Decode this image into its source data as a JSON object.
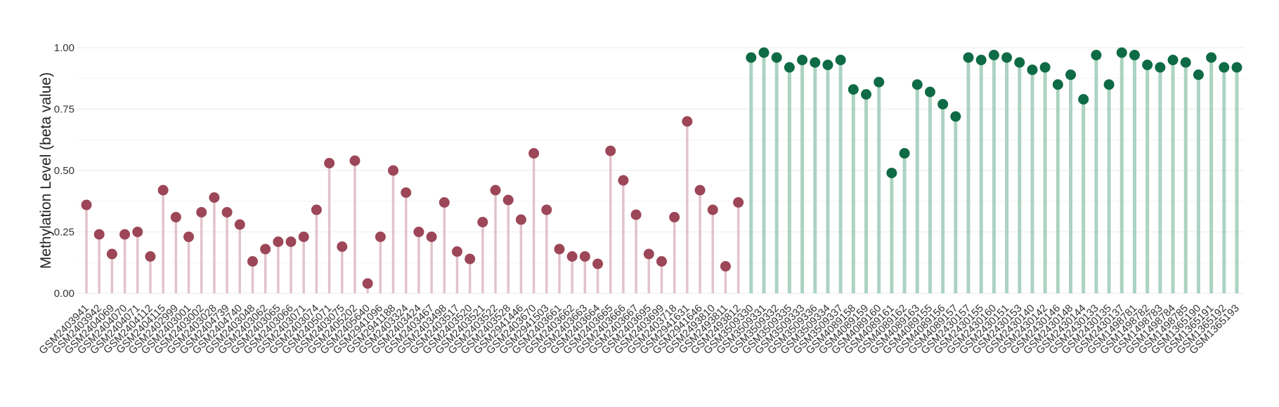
{
  "chart_data": {
    "type": "lollipop",
    "title": "",
    "xlabel": "",
    "ylabel": "Methylation Level (beta value)",
    "ylim": [
      0,
      1.05
    ],
    "yticks": [
      "0.00",
      "0.25",
      "0.50",
      "0.75",
      "1.00"
    ],
    "grid": true,
    "legend": "none",
    "colors": {
      "group_low_point": "#9c4657",
      "group_low_stem": "#e2c3cb",
      "group_high_point": "#0e6b45",
      "group_high_stem": "#acd3c2",
      "grid": "#efefef",
      "text": "#333333"
    },
    "categories": [
      "GSM2403941",
      "GSM2403942",
      "GSM2404069",
      "GSM2404070",
      "GSM2404071",
      "GSM2404112",
      "GSM2404115",
      "GSM2402999",
      "GSM2403001",
      "GSM2403002",
      "GSM2403028",
      "GSM2404739",
      "GSM2404740",
      "GSM2403048",
      "GSM2403062",
      "GSM2403065",
      "GSM2403066",
      "GSM2403071",
      "GSM2403074",
      "GSM2405071",
      "GSM2403075",
      "GSM2405202",
      "GSM2405640",
      "GSM2941096",
      "GSM2941188",
      "GSM2403324",
      "GSM2403424",
      "GSM2403467",
      "GSM2403498",
      "GSM2403517",
      "GSM2403520",
      "GSM2403521",
      "GSM2403522",
      "GSM2403528",
      "GSM2941446",
      "GSM2403670",
      "GSM2941503",
      "GSM2403661",
      "GSM2403662",
      "GSM2403663",
      "GSM2403664",
      "GSM2403665",
      "GSM2403666",
      "GSM2403667",
      "GSM2403695",
      "GSM2403699",
      "GSM2403718",
      "GSM2941631",
      "GSM2941646",
      "GSM2493810",
      "GSM2493811",
      "GSM2493812",
      "GSM3509330",
      "GSM3509331",
      "GSM3509332",
      "GSM3509335",
      "GSM3509333",
      "GSM3509336",
      "GSM3509334",
      "GSM3509337",
      "GSM4089158",
      "GSM4089159",
      "GSM4089160",
      "GSM4089161",
      "GSM4089162",
      "GSM4089163",
      "GSM4089155",
      "GSM4089156",
      "GSM4089157",
      "GSM2430157",
      "GSM2430155",
      "GSM2430160",
      "GSM2430151",
      "GSM2430153",
      "GSM2430140",
      "GSM2430142",
      "GSM2430146",
      "GSM2430148",
      "GSM2430144",
      "GSM2430133",
      "GSM2430135",
      "GSM2430137",
      "GSM1498781",
      "GSM1498782",
      "GSM1498783",
      "GSM1498784",
      "GSM1498785",
      "GSM1365190",
      "GSM1365191",
      "GSM1365192",
      "GSM1365193"
    ],
    "values": [
      0.36,
      0.24,
      0.16,
      0.24,
      0.25,
      0.15,
      0.42,
      0.31,
      0.23,
      0.33,
      0.39,
      0.33,
      0.28,
      0.13,
      0.18,
      0.21,
      0.21,
      0.23,
      0.34,
      0.53,
      0.19,
      0.54,
      0.04,
      0.23,
      0.5,
      0.41,
      0.25,
      0.23,
      0.37,
      0.17,
      0.14,
      0.29,
      0.42,
      0.38,
      0.3,
      0.57,
      0.34,
      0.18,
      0.15,
      0.15,
      0.12,
      0.58,
      0.46,
      0.32,
      0.16,
      0.13,
      0.31,
      0.7,
      0.42,
      0.34,
      0.11,
      0.37,
      0.96,
      0.98,
      0.96,
      0.92,
      0.95,
      0.94,
      0.93,
      0.95,
      0.83,
      0.81,
      0.86,
      0.49,
      0.57,
      0.85,
      0.82,
      0.77,
      0.72,
      0.96,
      0.95,
      0.97,
      0.96,
      0.94,
      0.91,
      0.92,
      0.85,
      0.89,
      0.79,
      0.97,
      0.85,
      0.98,
      0.97,
      0.93,
      0.92,
      0.95,
      0.94,
      0.89,
      0.96,
      0.92,
      0.92
    ],
    "group_split_index": 52
  }
}
